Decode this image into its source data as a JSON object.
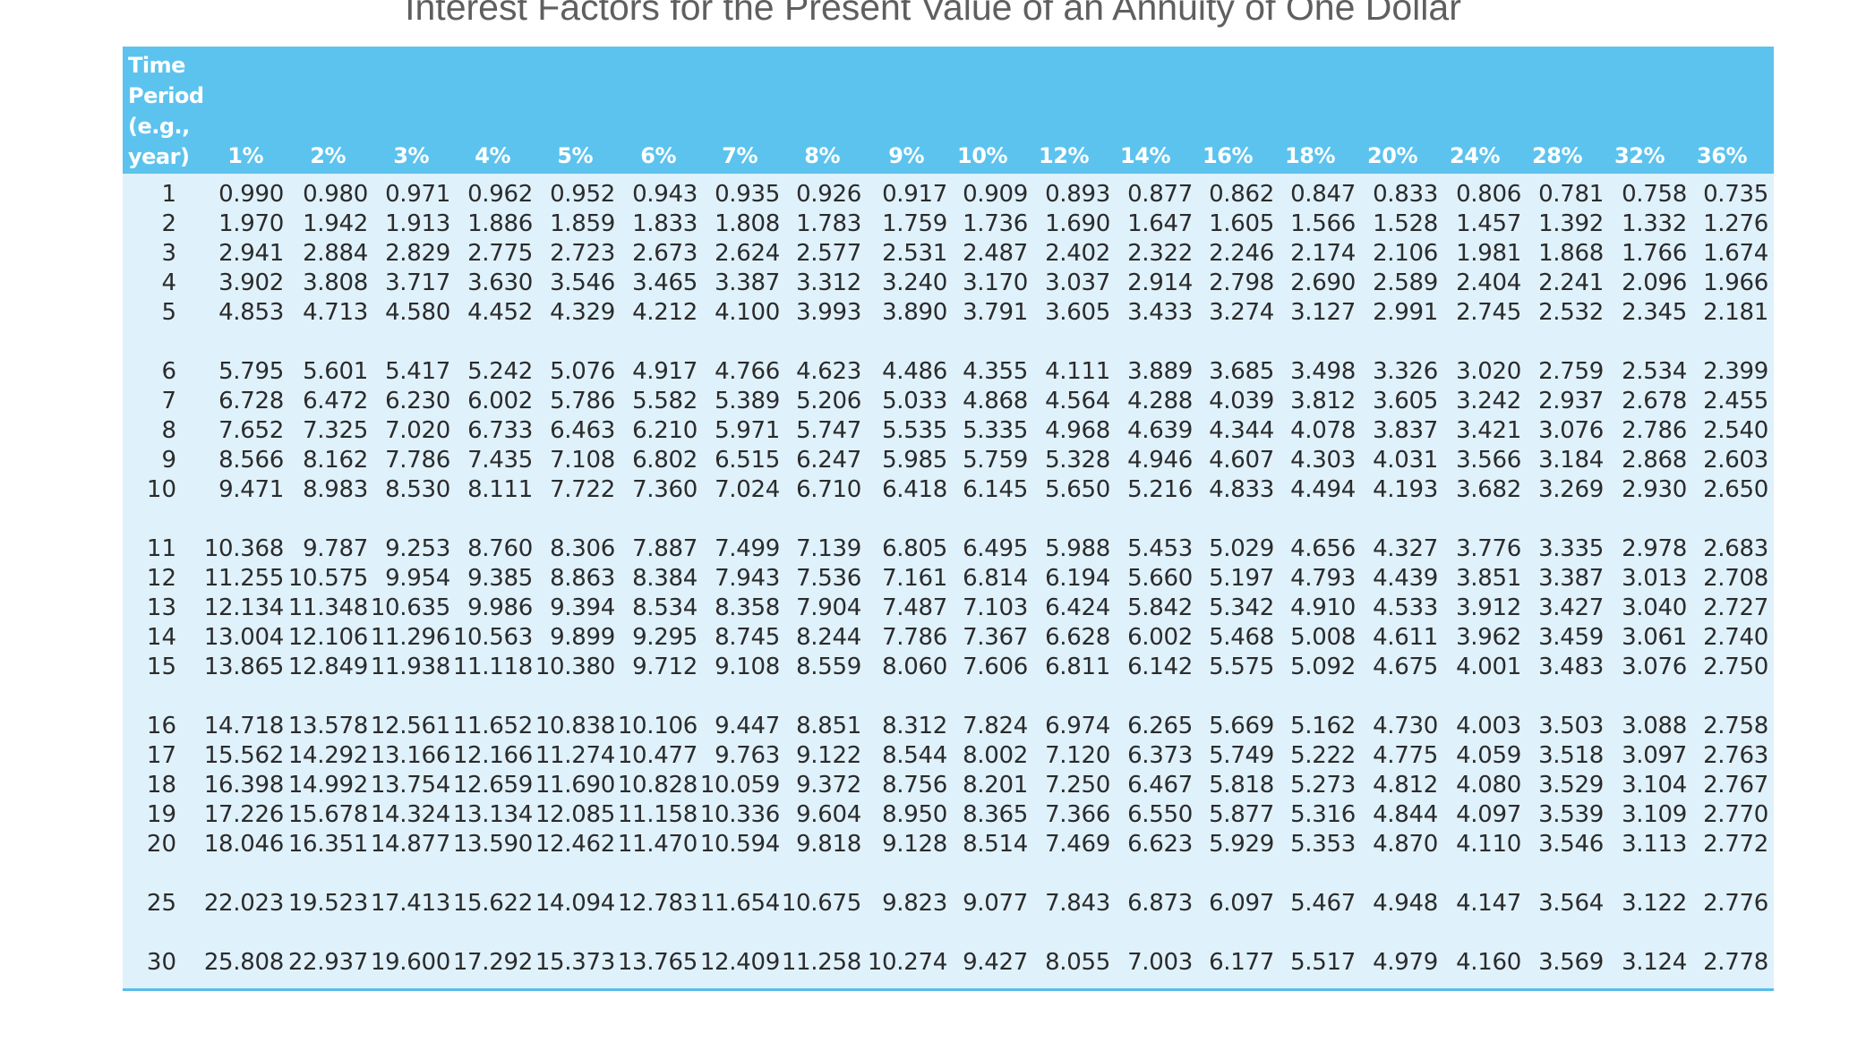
{
  "title": "Interest Factors for the Present Value of an Annuity of One Dollar",
  "header": {
    "period_label_lines": [
      "Time",
      "Period",
      "(e.g.,",
      "year)"
    ],
    "rates": [
      "1%",
      "2%",
      "3%",
      "4%",
      "5%",
      "6%",
      "7%",
      "8%",
      "9%",
      "10%",
      "12%",
      "14%",
      "16%",
      "18%",
      "20%",
      "24%",
      "28%",
      "32%",
      "36%"
    ]
  },
  "rows": [
    {
      "period": "1",
      "values": [
        "0.990",
        "0.980",
        "0.971",
        "0.962",
        "0.952",
        "0.943",
        "0.935",
        "0.926",
        "0.917",
        "0.909",
        "0.893",
        "0.877",
        "0.862",
        "0.847",
        "0.833",
        "0.806",
        "0.781",
        "0.758",
        "0.735"
      ]
    },
    {
      "period": "2",
      "values": [
        "1.970",
        "1.942",
        "1.913",
        "1.886",
        "1.859",
        "1.833",
        "1.808",
        "1.783",
        "1.759",
        "1.736",
        "1.690",
        "1.647",
        "1.605",
        "1.566",
        "1.528",
        "1.457",
        "1.392",
        "1.332",
        "1.276"
      ]
    },
    {
      "period": "3",
      "values": [
        "2.941",
        "2.884",
        "2.829",
        "2.775",
        "2.723",
        "2.673",
        "2.624",
        "2.577",
        "2.531",
        "2.487",
        "2.402",
        "2.322",
        "2.246",
        "2.174",
        "2.106",
        "1.981",
        "1.868",
        "1.766",
        "1.674"
      ]
    },
    {
      "period": "4",
      "values": [
        "3.902",
        "3.808",
        "3.717",
        "3.630",
        "3.546",
        "3.465",
        "3.387",
        "3.312",
        "3.240",
        "3.170",
        "3.037",
        "2.914",
        "2.798",
        "2.690",
        "2.589",
        "2.404",
        "2.241",
        "2.096",
        "1.966"
      ]
    },
    {
      "period": "5",
      "values": [
        "4.853",
        "4.713",
        "4.580",
        "4.452",
        "4.329",
        "4.212",
        "4.100",
        "3.993",
        "3.890",
        "3.791",
        "3.605",
        "3.433",
        "3.274",
        "3.127",
        "2.991",
        "2.745",
        "2.532",
        "2.345",
        "2.181"
      ]
    },
    {
      "period": "6",
      "values": [
        "5.795",
        "5.601",
        "5.417",
        "5.242",
        "5.076",
        "4.917",
        "4.766",
        "4.623",
        "4.486",
        "4.355",
        "4.111",
        "3.889",
        "3.685",
        "3.498",
        "3.326",
        "3.020",
        "2.759",
        "2.534",
        "2.399"
      ]
    },
    {
      "period": "7",
      "values": [
        "6.728",
        "6.472",
        "6.230",
        "6.002",
        "5.786",
        "5.582",
        "5.389",
        "5.206",
        "5.033",
        "4.868",
        "4.564",
        "4.288",
        "4.039",
        "3.812",
        "3.605",
        "3.242",
        "2.937",
        "2.678",
        "2.455"
      ]
    },
    {
      "period": "8",
      "values": [
        "7.652",
        "7.325",
        "7.020",
        "6.733",
        "6.463",
        "6.210",
        "5.971",
        "5.747",
        "5.535",
        "5.335",
        "4.968",
        "4.639",
        "4.344",
        "4.078",
        "3.837",
        "3.421",
        "3.076",
        "2.786",
        "2.540"
      ]
    },
    {
      "period": "9",
      "values": [
        "8.566",
        "8.162",
        "7.786",
        "7.435",
        "7.108",
        "6.802",
        "6.515",
        "6.247",
        "5.985",
        "5.759",
        "5.328",
        "4.946",
        "4.607",
        "4.303",
        "4.031",
        "3.566",
        "3.184",
        "2.868",
        "2.603"
      ]
    },
    {
      "period": "10",
      "values": [
        "9.471",
        "8.983",
        "8.530",
        "8.111",
        "7.722",
        "7.360",
        "7.024",
        "6.710",
        "6.418",
        "6.145",
        "5.650",
        "5.216",
        "4.833",
        "4.494",
        "4.193",
        "3.682",
        "3.269",
        "2.930",
        "2.650"
      ]
    },
    {
      "period": "11",
      "values": [
        "10.368",
        "9.787",
        "9.253",
        "8.760",
        "8.306",
        "7.887",
        "7.499",
        "7.139",
        "6.805",
        "6.495",
        "5.988",
        "5.453",
        "5.029",
        "4.656",
        "4.327",
        "3.776",
        "3.335",
        "2.978",
        "2.683"
      ]
    },
    {
      "period": "12",
      "values": [
        "11.255",
        "10.575",
        "9.954",
        "9.385",
        "8.863",
        "8.384",
        "7.943",
        "7.536",
        "7.161",
        "6.814",
        "6.194",
        "5.660",
        "5.197",
        "4.793",
        "4.439",
        "3.851",
        "3.387",
        "3.013",
        "2.708"
      ]
    },
    {
      "period": "13",
      "values": [
        "12.134",
        "11.348",
        "10.635",
        "9.986",
        "9.394",
        "8.534",
        "8.358",
        "7.904",
        "7.487",
        "7.103",
        "6.424",
        "5.842",
        "5.342",
        "4.910",
        "4.533",
        "3.912",
        "3.427",
        "3.040",
        "2.727"
      ]
    },
    {
      "period": "14",
      "values": [
        "13.004",
        "12.106",
        "11.296",
        "10.563",
        "9.899",
        "9.295",
        "8.745",
        "8.244",
        "7.786",
        "7.367",
        "6.628",
        "6.002",
        "5.468",
        "5.008",
        "4.611",
        "3.962",
        "3.459",
        "3.061",
        "2.740"
      ]
    },
    {
      "period": "15",
      "values": [
        "13.865",
        "12.849",
        "11.938",
        "11.118",
        "10.380",
        "9.712",
        "9.108",
        "8.559",
        "8.060",
        "7.606",
        "6.811",
        "6.142",
        "5.575",
        "5.092",
        "4.675",
        "4.001",
        "3.483",
        "3.076",
        "2.750"
      ]
    },
    {
      "period": "16",
      "values": [
        "14.718",
        "13.578",
        "12.561",
        "11.652",
        "10.838",
        "10.106",
        "9.447",
        "8.851",
        "8.312",
        "7.824",
        "6.974",
        "6.265",
        "5.669",
        "5.162",
        "4.730",
        "4.003",
        "3.503",
        "3.088",
        "2.758"
      ]
    },
    {
      "period": "17",
      "values": [
        "15.562",
        "14.292",
        "13.166",
        "12.166",
        "11.274",
        "10.477",
        "9.763",
        "9.122",
        "8.544",
        "8.002",
        "7.120",
        "6.373",
        "5.749",
        "5.222",
        "4.775",
        "4.059",
        "3.518",
        "3.097",
        "2.763"
      ]
    },
    {
      "period": "18",
      "values": [
        "16.398",
        "14.992",
        "13.754",
        "12.659",
        "11.690",
        "10.828",
        "10.059",
        "9.372",
        "8.756",
        "8.201",
        "7.250",
        "6.467",
        "5.818",
        "5.273",
        "4.812",
        "4.080",
        "3.529",
        "3.104",
        "2.767"
      ]
    },
    {
      "period": "19",
      "values": [
        "17.226",
        "15.678",
        "14.324",
        "13.134",
        "12.085",
        "11.158",
        "10.336",
        "9.604",
        "8.950",
        "8.365",
        "7.366",
        "6.550",
        "5.877",
        "5.316",
        "4.844",
        "4.097",
        "3.539",
        "3.109",
        "2.770"
      ]
    },
    {
      "period": "20",
      "values": [
        "18.046",
        "16.351",
        "14.877",
        "13.590",
        "12.462",
        "11.470",
        "10.594",
        "9.818",
        "9.128",
        "8.514",
        "7.469",
        "6.623",
        "5.929",
        "5.353",
        "4.870",
        "4.110",
        "3.546",
        "3.113",
        "2.772"
      ]
    },
    {
      "period": "25",
      "values": [
        "22.023",
        "19.523",
        "17.413",
        "15.622",
        "14.094",
        "12.783",
        "11.654",
        "10.675",
        "9.823",
        "9.077",
        "7.843",
        "6.873",
        "6.097",
        "5.467",
        "4.948",
        "4.147",
        "3.564",
        "3.122",
        "2.776"
      ]
    },
    {
      "period": "30",
      "values": [
        "25.808",
        "22.937",
        "19.600",
        "17.292",
        "15.373",
        "13.765",
        "12.409",
        "11.258",
        "10.274",
        "9.427",
        "8.055",
        "7.003",
        "6.177",
        "5.517",
        "4.979",
        "4.160",
        "3.569",
        "3.124",
        "2.778"
      ]
    }
  ]
}
